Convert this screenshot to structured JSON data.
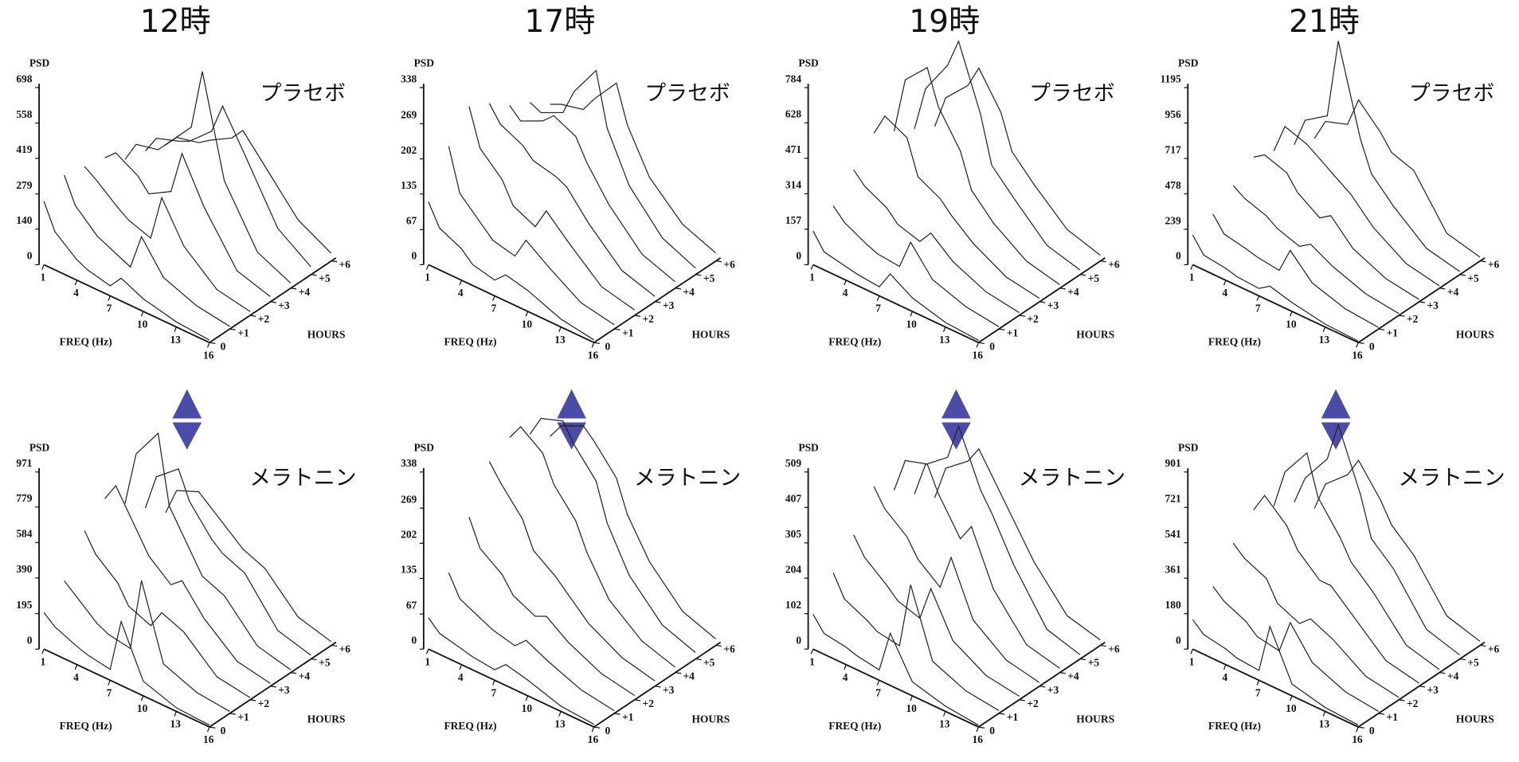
{
  "chart_data": [
    {
      "type": "waterfall",
      "title": "12時",
      "label": "プラセボ",
      "ylabel": "PSD",
      "xlabel": "FREQ (Hz)",
      "zlabel": "HOURS",
      "color": "#222222",
      "ylim": [
        0,
        698
      ],
      "yticks": [
        0,
        140,
        279,
        419,
        558,
        698
      ],
      "xlim": [
        1,
        16
      ],
      "xticks": [
        1,
        4,
        7,
        10,
        13,
        16
      ],
      "zticks": [
        0,
        {
          "value": 1,
          "label": "+1"
        },
        {
          "value": 2,
          "label": "+2"
        },
        {
          "value": 3,
          "label": "+3"
        },
        {
          "value": 4,
          "label": "+4"
        },
        {
          "value": 5,
          "label": "+5"
        },
        {
          "value": 6,
          "label": "+6"
        }
      ],
      "x": [
        1,
        2,
        4,
        5,
        7,
        8,
        10,
        13,
        16
      ],
      "series": [
        {
          "values": [
            250,
            150,
            80,
            60,
            40,
            90,
            50,
            20,
            10
          ]
        },
        {
          "values": [
            300,
            200,
            120,
            100,
            60,
            200,
            80,
            30,
            10
          ]
        },
        {
          "values": [
            280,
            250,
            180,
            150,
            120,
            300,
            150,
            40,
            15
          ]
        },
        {
          "values": [
            260,
            300,
            250,
            200,
            250,
            420,
            250,
            60,
            20
          ]
        },
        {
          "values": [
            200,
            280,
            300,
            350,
            450,
            690,
            300,
            80,
            20
          ]
        },
        {
          "values": [
            180,
            250,
            280,
            300,
            380,
            500,
            350,
            120,
            30
          ]
        },
        {
          "values": [
            150,
            200,
            220,
            250,
            300,
            350,
            250,
            100,
            30
          ]
        }
      ]
    },
    {
      "type": "waterfall",
      "label": "メラトニン",
      "ylabel": "PSD",
      "xlabel": "FREQ (Hz)",
      "zlabel": "HOURS",
      "color": "#222222",
      "ylim": [
        0,
        971
      ],
      "yticks": [
        0,
        195,
        390,
        584,
        779,
        971
      ],
      "xlim": [
        1,
        16
      ],
      "xticks": [
        1,
        4,
        7,
        10,
        13,
        16
      ],
      "zticks": [
        0,
        {
          "value": 1,
          "label": "+1"
        },
        {
          "value": 2,
          "label": "+2"
        },
        {
          "value": 3,
          "label": "+3"
        },
        {
          "value": 4,
          "label": "+4"
        },
        {
          "value": 5,
          "label": "+5"
        },
        {
          "value": 6,
          "label": "+6"
        }
      ],
      "x": [
        1,
        2,
        4,
        5,
        7,
        8,
        10,
        13,
        16
      ],
      "series": [
        {
          "values": [
            200,
            150,
            100,
            80,
            60,
            350,
            80,
            20,
            10
          ]
        },
        {
          "values": [
            300,
            250,
            150,
            120,
            100,
            500,
            100,
            30,
            10
          ]
        },
        {
          "values": [
            500,
            400,
            300,
            200,
            150,
            250,
            200,
            40,
            12
          ]
        },
        {
          "values": [
            600,
            700,
            500,
            400,
            300,
            350,
            200,
            50,
            15
          ]
        },
        {
          "values": [
            500,
            800,
            970,
            600,
            400,
            300,
            250,
            60,
            15
          ]
        },
        {
          "values": [
            400,
            600,
            700,
            550,
            400,
            350,
            300,
            70,
            20
          ]
        },
        {
          "values": [
            300,
            450,
            500,
            450,
            350,
            300,
            250,
            70,
            20
          ]
        }
      ]
    },
    {
      "type": "waterfall",
      "title": "17時",
      "label": "プラセボ",
      "ylabel": "PSD",
      "xlabel": "FREQ (Hz)",
      "zlabel": "HOURS",
      "color": "#222222",
      "ylim": [
        0,
        338
      ],
      "yticks": [
        0,
        67,
        135,
        202,
        269,
        338
      ],
      "xlim": [
        1,
        16
      ],
      "xticks": [
        1,
        4,
        7,
        10,
        13,
        16
      ],
      "zticks": [
        0,
        {
          "value": 1,
          "label": "+1"
        },
        {
          "value": 2,
          "label": "+2"
        },
        {
          "value": 3,
          "label": "+3"
        },
        {
          "value": 4,
          "label": "+4"
        },
        {
          "value": 5,
          "label": "+5"
        },
        {
          "value": 6,
          "label": "+6"
        }
      ],
      "x": [
        1,
        2,
        4,
        5,
        7,
        8,
        10,
        13,
        16
      ],
      "series": [
        {
          "values": [
            120,
            80,
            60,
            40,
            30,
            50,
            40,
            15,
            5
          ]
        },
        {
          "values": [
            200,
            120,
            80,
            60,
            50,
            90,
            60,
            20,
            8
          ]
        },
        {
          "values": [
            250,
            180,
            140,
            100,
            80,
            120,
            80,
            25,
            10
          ]
        },
        {
          "values": [
            230,
            200,
            180,
            160,
            150,
            140,
            90,
            30,
            10
          ]
        },
        {
          "values": [
            200,
            180,
            200,
            220,
            200,
            160,
            100,
            35,
            12
          ]
        },
        {
          "values": [
            180,
            170,
            190,
            240,
            300,
            200,
            110,
            40,
            12
          ]
        },
        {
          "values": [
            150,
            160,
            170,
            200,
            250,
            180,
            100,
            40,
            15
          ]
        }
      ]
    },
    {
      "type": "waterfall",
      "label": "メラトニン",
      "ylabel": "PSD",
      "xlabel": "FREQ (Hz)",
      "zlabel": "HOURS",
      "color": "#222222",
      "ylim": [
        0,
        338
      ],
      "yticks": [
        0,
        67,
        135,
        202,
        269,
        338
      ],
      "xlim": [
        1,
        16
      ],
      "xticks": [
        1,
        4,
        7,
        10,
        13,
        16
      ],
      "zticks": [
        0,
        {
          "value": 1,
          "label": "+1"
        },
        {
          "value": 2,
          "label": "+2"
        },
        {
          "value": 3,
          "label": "+3"
        },
        {
          "value": 4,
          "label": "+4"
        },
        {
          "value": 5,
          "label": "+5"
        },
        {
          "value": 6,
          "label": "+6"
        }
      ],
      "x": [
        1,
        2,
        4,
        5,
        7,
        8,
        10,
        13,
        16
      ],
      "series": [
        {
          "values": [
            60,
            40,
            30,
            25,
            20,
            40,
            30,
            10,
            5
          ]
        },
        {
          "values": [
            120,
            80,
            60,
            50,
            40,
            60,
            40,
            15,
            5
          ]
        },
        {
          "values": [
            200,
            150,
            120,
            90,
            70,
            80,
            50,
            20,
            8
          ]
        },
        {
          "values": [
            280,
            250,
            200,
            150,
            120,
            100,
            60,
            25,
            10
          ]
        },
        {
          "values": [
            300,
            330,
            300,
            250,
            200,
            150,
            80,
            30,
            10
          ]
        },
        {
          "values": [
            280,
            320,
            335,
            300,
            250,
            180,
            100,
            35,
            12
          ]
        },
        {
          "values": [
            250,
            280,
            300,
            280,
            230,
            170,
            100,
            35,
            12
          ]
        }
      ]
    },
    {
      "type": "waterfall",
      "title": "19時",
      "label": "プラセボ",
      "ylabel": "PSD",
      "xlabel": "FREQ (Hz)",
      "zlabel": "HOURS",
      "color": "#222222",
      "ylim": [
        0,
        784
      ],
      "yticks": [
        0,
        157,
        314,
        471,
        628,
        784
      ],
      "xlim": [
        1,
        16
      ],
      "xticks": [
        1,
        4,
        7,
        10,
        13,
        16
      ],
      "zticks": [
        0,
        {
          "value": 1,
          "label": "+1"
        },
        {
          "value": 2,
          "label": "+2"
        },
        {
          "value": 3,
          "label": "+3"
        },
        {
          "value": 4,
          "label": "+4"
        },
        {
          "value": 5,
          "label": "+5"
        },
        {
          "value": 6,
          "label": "+6"
        }
      ],
      "x": [
        1,
        2,
        4,
        5,
        7,
        8,
        10,
        13,
        16
      ],
      "series": [
        {
          "values": [
            150,
            80,
            60,
            50,
            40,
            120,
            60,
            20,
            10
          ]
        },
        {
          "values": [
            200,
            150,
            100,
            80,
            70,
            200,
            80,
            30,
            10
          ]
        },
        {
          "values": [
            300,
            250,
            200,
            150,
            120,
            180,
            100,
            35,
            12
          ]
        },
        {
          "values": [
            400,
            500,
            450,
            300,
            250,
            200,
            120,
            40,
            15
          ]
        },
        {
          "values": [
            350,
            600,
            700,
            550,
            400,
            250,
            150,
            50,
            15
          ]
        },
        {
          "values": [
            300,
            500,
            650,
            780,
            500,
            300,
            200,
            60,
            20
          ]
        },
        {
          "values": [
            250,
            400,
            500,
            600,
            450,
            300,
            200,
            70,
            25
          ]
        }
      ]
    },
    {
      "type": "waterfall",
      "label": "メラトニン",
      "ylabel": "PSD",
      "xlabel": "FREQ (Hz)",
      "zlabel": "HOURS",
      "color": "#222222",
      "ylim": [
        0,
        509
      ],
      "yticks": [
        0,
        102,
        204,
        305,
        407,
        509
      ],
      "xlim": [
        1,
        16
      ],
      "xticks": [
        1,
        4,
        7,
        10,
        13,
        16
      ],
      "zticks": [
        0,
        {
          "value": 1,
          "label": "+1"
        },
        {
          "value": 2,
          "label": "+2"
        },
        {
          "value": 3,
          "label": "+3"
        },
        {
          "value": 4,
          "label": "+4"
        },
        {
          "value": 5,
          "label": "+5"
        },
        {
          "value": 6,
          "label": "+6"
        }
      ],
      "x": [
        1,
        2,
        4,
        5,
        7,
        8,
        10,
        13,
        16
      ],
      "series": [
        {
          "values": [
            100,
            60,
            50,
            40,
            30,
            150,
            40,
            15,
            5
          ]
        },
        {
          "values": [
            180,
            120,
            90,
            70,
            60,
            250,
            60,
            20,
            8
          ]
        },
        {
          "values": [
            250,
            200,
            150,
            120,
            100,
            200,
            80,
            25,
            10
          ]
        },
        {
          "values": [
            350,
            300,
            250,
            200,
            150,
            250,
            100,
            30,
            10
          ]
        },
        {
          "values": [
            300,
            400,
            420,
            350,
            250,
            300,
            150,
            35,
            12
          ]
        },
        {
          "values": [
            250,
            350,
            400,
            505,
            350,
            300,
            180,
            40,
            12
          ]
        },
        {
          "values": [
            200,
            300,
            350,
            400,
            300,
            250,
            150,
            40,
            15
          ]
        }
      ]
    },
    {
      "type": "waterfall",
      "title": "21時",
      "label": "プラセボ",
      "ylabel": "PSD",
      "xlabel": "FREQ (Hz)",
      "zlabel": "HOURS",
      "color": "#222222",
      "ylim": [
        0,
        1195
      ],
      "yticks": [
        0,
        239,
        478,
        717,
        956,
        1195
      ],
      "xlim": [
        1,
        16
      ],
      "xticks": [
        1,
        4,
        7,
        10,
        13,
        16
      ],
      "zticks": [
        0,
        {
          "value": 1,
          "label": "+1"
        },
        {
          "value": 2,
          "label": "+2"
        },
        {
          "value": 3,
          "label": "+3"
        },
        {
          "value": 4,
          "label": "+4"
        },
        {
          "value": 5,
          "label": "+5"
        },
        {
          "value": 6,
          "label": "+6"
        }
      ],
      "x": [
        1,
        2,
        4,
        5,
        7,
        8,
        10,
        13,
        16
      ],
      "series": [
        {
          "values": [
            200,
            100,
            80,
            60,
            50,
            100,
            60,
            20,
            10
          ]
        },
        {
          "values": [
            250,
            150,
            120,
            100,
            80,
            250,
            100,
            30,
            10
          ]
        },
        {
          "values": [
            350,
            300,
            250,
            200,
            150,
            200,
            120,
            40,
            12
          ]
        },
        {
          "values": [
            450,
            500,
            450,
            350,
            250,
            300,
            150,
            50,
            15
          ]
        },
        {
          "values": [
            400,
            600,
            550,
            500,
            400,
            350,
            200,
            60,
            15
          ]
        },
        {
          "values": [
            350,
            550,
            650,
            1190,
            600,
            400,
            250,
            70,
            20
          ]
        },
        {
          "values": [
            300,
            450,
            500,
            700,
            550,
            450,
            400,
            80,
            25
          ]
        }
      ]
    },
    {
      "type": "waterfall",
      "label": "メラトニン",
      "ylabel": "PSD",
      "xlabel": "FREQ (Hz)",
      "zlabel": "HOURS",
      "color": "#222222",
      "ylim": [
        0,
        901
      ],
      "yticks": [
        0,
        180,
        361,
        541,
        721,
        901
      ],
      "xlim": [
        1,
        16
      ],
      "xticks": [
        1,
        4,
        7,
        10,
        13,
        16
      ],
      "zticks": [
        0,
        {
          "value": 1,
          "label": "+1"
        },
        {
          "value": 2,
          "label": "+2"
        },
        {
          "value": 3,
          "label": "+3"
        },
        {
          "value": 4,
          "label": "+4"
        },
        {
          "value": 5,
          "label": "+5"
        },
        {
          "value": 6,
          "label": "+6"
        }
      ],
      "x": [
        1,
        2,
        4,
        5,
        7,
        8,
        10,
        13,
        16
      ],
      "series": [
        {
          "values": [
            150,
            100,
            80,
            60,
            50,
            300,
            60,
            20,
            10
          ]
        },
        {
          "values": [
            250,
            200,
            150,
            100,
            80,
            250,
            100,
            30,
            10
          ]
        },
        {
          "values": [
            400,
            350,
            300,
            200,
            150,
            200,
            150,
            40,
            12
          ]
        },
        {
          "values": [
            500,
            600,
            500,
            400,
            300,
            300,
            200,
            50,
            15
          ]
        },
        {
          "values": [
            450,
            650,
            800,
            600,
            450,
            350,
            250,
            60,
            15
          ]
        },
        {
          "values": [
            400,
            550,
            700,
            900,
            600,
            400,
            300,
            70,
            20
          ]
        },
        {
          "values": [
            300,
            450,
            550,
            650,
            500,
            400,
            300,
            70,
            20
          ]
        }
      ]
    }
  ]
}
